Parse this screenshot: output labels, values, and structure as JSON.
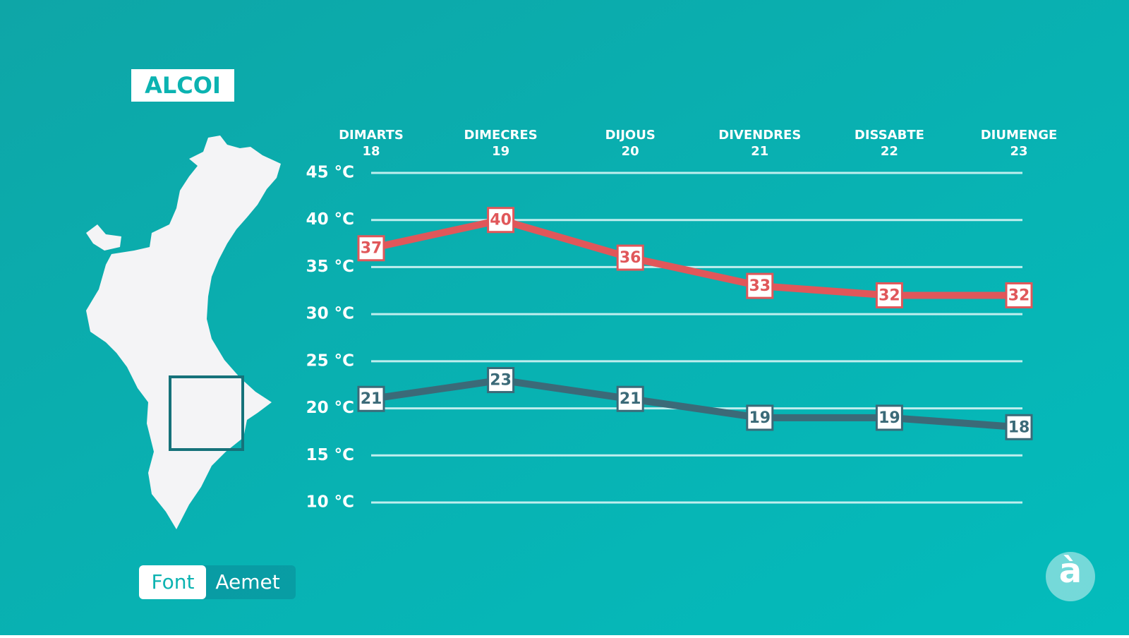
{
  "chart_data": {
    "type": "line",
    "title": "ALCOI",
    "categories": [
      "DIMARTS",
      "DIMECRES",
      "DIJOUS",
      "DIVENDRES",
      "DISSABTE",
      "DIUMENGE"
    ],
    "dates": [
      18,
      19,
      20,
      21,
      22,
      23
    ],
    "series": [
      {
        "color": "#e0575a",
        "values": [
          37,
          40,
          36,
          33,
          32,
          32
        ]
      },
      {
        "color": "#3b6a78",
        "values": [
          21,
          23,
          21,
          19,
          19,
          18
        ]
      }
    ],
    "ylim": [
      10,
      45
    ],
    "yticks": [
      {
        "value": 10,
        "label": "10 °C"
      },
      {
        "value": 15,
        "label": "15 °C"
      },
      {
        "value": 20,
        "label": "20 °C"
      },
      {
        "value": 25,
        "label": "25 °C"
      },
      {
        "value": 30,
        "label": "30 °C"
      },
      {
        "value": 35,
        "label": "35 °C"
      },
      {
        "value": 40,
        "label": "40 °C"
      },
      {
        "value": 45,
        "label": "45 °C"
      }
    ],
    "grid": true
  },
  "source": {
    "label": "Font",
    "name": "Aemet"
  },
  "logo": "à"
}
